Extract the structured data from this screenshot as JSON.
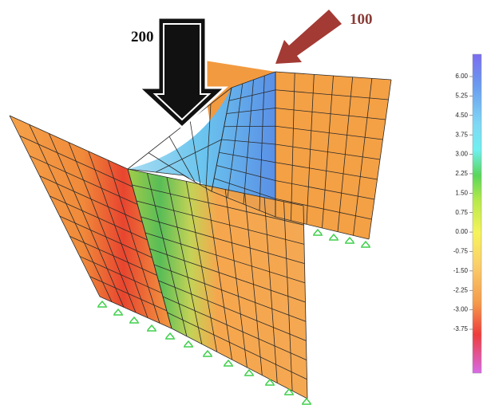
{
  "loads": [
    {
      "label": "200"
    },
    {
      "label": "100"
    }
  ],
  "legend": {
    "labels": [
      "6.00",
      "5.25",
      "4.50",
      "3.75",
      "3.00",
      "2.25",
      "1.50",
      "0.75",
      "0.00",
      "-0.75",
      "-1.50",
      "-2.25",
      "-3.00",
      "-3.75"
    ]
  }
}
